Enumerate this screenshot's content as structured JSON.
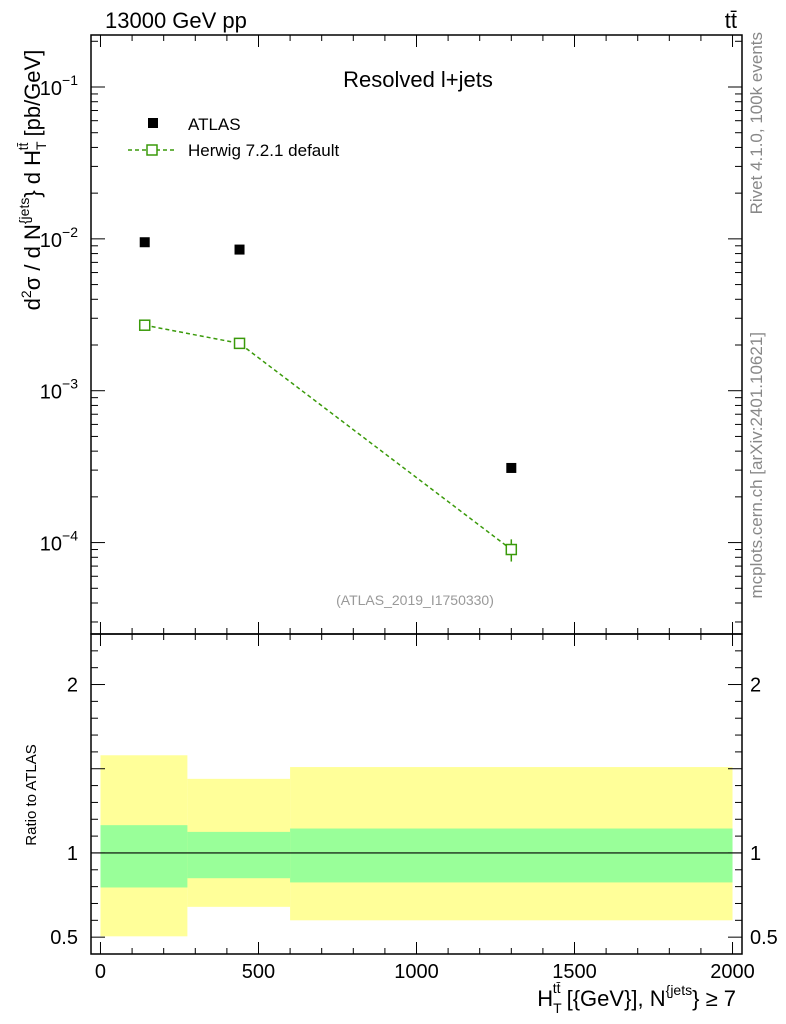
{
  "chart_data": {
    "type": "scatter",
    "header_left": "13000 GeV pp",
    "header_right": "tt̄",
    "title": "Resolved l+jets",
    "analysis_ref": "(ATLAS_2019_I1750330)",
    "side_text_top": "Rivet 4.1.0,  100k events",
    "side_text_bottom": "mcplots.cern.ch [arXiv:2401.10621]",
    "ylabel_main": "d²σ / d N^{jets} d H_T^{tt̄} [pb/GeV]",
    "ylabel_main_parts": {
      "d": "d",
      "sup2": "2",
      "sigma": "σ / d N",
      "jets": "{jets",
      "close": "} d H",
      "T": "T",
      "tt": "tt̄",
      "unit": " [pb/GeV]"
    },
    "ylabel_ratio": "Ratio to ATLAS",
    "xlabel": "H_T^{tt̄} [{GeV}], N^{jets} ≥ 7",
    "xlabel_parts": {
      "H": "H",
      "T": "T",
      "tt": "tt̄",
      "mid": " [{GeV}], N",
      "jets": "{jets",
      "end": "} ≥ 7"
    },
    "xlim": [
      -30,
      2030
    ],
    "ylim_main": [
      2.5e-05,
      0.22
    ],
    "ylim_ratio": [
      0.4,
      2.3
    ],
    "x_ticks": [
      0,
      500,
      1000,
      1500,
      2000
    ],
    "x_tick_labels": [
      "0",
      "500",
      "1000",
      "1500",
      "2000"
    ],
    "y_ticks_main": [
      {
        "value": 0.1,
        "base": "10",
        "exp": "−1"
      },
      {
        "value": 0.01,
        "base": "10",
        "exp": "−2"
      },
      {
        "value": 0.001,
        "base": "10",
        "exp": "−3"
      },
      {
        "value": 0.0001,
        "base": "10",
        "exp": "−4"
      }
    ],
    "y_ticks_ratio": [
      {
        "value": 0.5,
        "label": "0.5"
      },
      {
        "value": 1,
        "label": "1"
      },
      {
        "value": 2,
        "label": "2"
      }
    ],
    "legend": [
      {
        "name": "ATLAS",
        "marker": "filled-square",
        "color": "#000000"
      },
      {
        "name": "Herwig 7.2.1 default",
        "marker": "open-square-dashed",
        "color": "#3a9a0a"
      }
    ],
    "series": [
      {
        "name": "ATLAS",
        "x": [
          140,
          440,
          1300
        ],
        "y": [
          0.0095,
          0.0085,
          0.00031
        ]
      },
      {
        "name": "Herwig 7.2.1 default",
        "x": [
          140,
          440,
          1300
        ],
        "y": [
          0.0027,
          0.00205,
          9e-05
        ],
        "yerr_low": [
          5e-05,
          4e-05,
          1.5e-05
        ],
        "yerr_high": [
          5e-05,
          4e-05,
          1.5e-05
        ]
      }
    ],
    "ratio_bands": [
      {
        "x0": 0,
        "x1": 275,
        "inner": [
          0.795,
          1.165
        ],
        "outer": [
          0.505,
          1.58
        ]
      },
      {
        "x0": 275,
        "x1": 600,
        "inner": [
          0.85,
          1.125
        ],
        "outer": [
          0.68,
          1.44
        ]
      },
      {
        "x0": 600,
        "x1": 2000,
        "inner": [
          0.825,
          1.145
        ],
        "outer": [
          0.6,
          1.51
        ]
      }
    ],
    "ratio_band_colors": {
      "inner": "#99ff99",
      "outer": "#ffff99"
    }
  }
}
